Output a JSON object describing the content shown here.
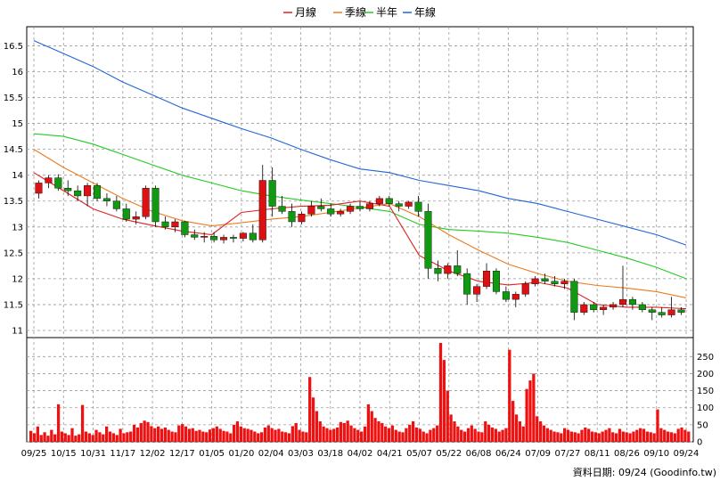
{
  "chart_data": {
    "type": "candlestick",
    "legend": [
      {
        "name": "月線",
        "color": "#e02020"
      },
      {
        "name": "季線",
        "color": "#ee7a1c"
      },
      {
        "name": "半年",
        "color": "#22cc22"
      },
      {
        "name": "年線",
        "color": "#1f66d6"
      }
    ],
    "price_axis": {
      "ylim": [
        11,
        16.8
      ],
      "ticks": [
        "16.5",
        "16",
        "15.5",
        "15",
        "14.5",
        "14",
        "13.5",
        "13",
        "12.5",
        "12",
        "11.5",
        "11"
      ]
    },
    "volume_axis": {
      "ylim": [
        0,
        290
      ],
      "ticks": [
        "250",
        "200",
        "150",
        "100",
        "50",
        "0"
      ]
    },
    "x_ticks": [
      "09/25",
      "10/15",
      "10/31",
      "11/17",
      "12/02",
      "12/17",
      "01/05",
      "01/20",
      "02/04",
      "03/03",
      "03/18",
      "04/02",
      "04/21",
      "05/07",
      "05/22",
      "06/08",
      "06/24",
      "07/09",
      "07/27",
      "08/11",
      "08/26",
      "09/10",
      "09/24"
    ],
    "grid": true,
    "series": [
      {
        "name": "年線",
        "x": [
          "09/25",
          "10/15",
          "10/31",
          "11/17",
          "12/02",
          "12/17",
          "01/05",
          "01/20",
          "02/04",
          "03/03",
          "03/18",
          "04/02",
          "04/21",
          "05/07",
          "05/22",
          "06/08",
          "06/24",
          "07/09",
          "07/27",
          "08/11",
          "08/26",
          "09/10",
          "09/24"
        ],
        "values": [
          16.6,
          16.35,
          16.1,
          15.8,
          15.55,
          15.3,
          15.1,
          14.9,
          14.72,
          14.5,
          14.3,
          14.12,
          14.05,
          13.9,
          13.8,
          13.7,
          13.55,
          13.45,
          13.3,
          13.15,
          13.0,
          12.85,
          12.65
        ]
      },
      {
        "name": "半年",
        "x": [
          "09/25",
          "10/15",
          "10/31",
          "11/17",
          "12/02",
          "12/17",
          "01/05",
          "01/20",
          "02/04",
          "03/03",
          "03/18",
          "04/02",
          "04/21",
          "05/07",
          "05/22",
          "06/08",
          "06/24",
          "07/09",
          "07/27",
          "08/11",
          "08/26",
          "09/10",
          "09/24"
        ],
        "values": [
          14.8,
          14.75,
          14.6,
          14.4,
          14.2,
          14.0,
          13.85,
          13.7,
          13.6,
          13.52,
          13.45,
          13.38,
          13.3,
          13.05,
          12.95,
          12.92,
          12.88,
          12.8,
          12.7,
          12.55,
          12.4,
          12.22,
          12.0
        ]
      },
      {
        "name": "季線",
        "x": [
          "09/25",
          "10/15",
          "10/31",
          "11/17",
          "12/02",
          "12/17",
          "01/05",
          "01/20",
          "02/04",
          "03/03",
          "03/18",
          "04/02",
          "04/21",
          "05/07",
          "05/22",
          "06/08",
          "06/24",
          "07/09",
          "07/27",
          "08/11",
          "08/26",
          "09/10",
          "09/24"
        ],
        "values": [
          14.5,
          14.15,
          13.85,
          13.55,
          13.3,
          13.12,
          13.02,
          13.08,
          13.15,
          13.2,
          13.28,
          13.37,
          13.45,
          13.2,
          12.85,
          12.55,
          12.28,
          12.1,
          11.95,
          11.87,
          11.82,
          11.75,
          11.63
        ]
      },
      {
        "name": "月線",
        "x": [
          "09/25",
          "10/15",
          "10/31",
          "11/17",
          "12/02",
          "12/17",
          "01/05",
          "01/20",
          "02/04",
          "03/03",
          "03/18",
          "04/02",
          "04/21",
          "05/07",
          "05/22",
          "06/08",
          "06/24",
          "07/09",
          "07/27",
          "08/11",
          "08/26",
          "09/10",
          "09/24"
        ],
        "values": [
          14.05,
          13.7,
          13.35,
          13.15,
          13.03,
          12.92,
          12.85,
          13.28,
          13.35,
          13.4,
          13.42,
          13.5,
          13.4,
          12.45,
          12.15,
          11.95,
          11.88,
          11.93,
          11.82,
          11.5,
          11.45,
          11.45,
          11.42
        ]
      }
    ],
    "candles": [
      [
        13.65,
        13.9,
        13.55,
        13.85
      ],
      [
        13.85,
        14.0,
        13.75,
        13.95
      ],
      [
        13.95,
        14.02,
        13.7,
        13.75
      ],
      [
        13.75,
        13.9,
        13.6,
        13.7
      ],
      [
        13.7,
        13.8,
        13.5,
        13.6
      ],
      [
        13.6,
        13.85,
        13.4,
        13.8
      ],
      [
        13.8,
        13.85,
        13.5,
        13.55
      ],
      [
        13.55,
        13.65,
        13.4,
        13.5
      ],
      [
        13.5,
        13.6,
        13.3,
        13.35
      ],
      [
        13.35,
        13.45,
        13.1,
        13.15
      ],
      [
        13.15,
        13.3,
        13.05,
        13.2
      ],
      [
        13.2,
        13.8,
        13.15,
        13.75
      ],
      [
        13.75,
        13.8,
        13.0,
        13.1
      ],
      [
        13.1,
        13.2,
        12.95,
        13.0
      ],
      [
        13.0,
        13.15,
        12.9,
        13.1
      ],
      [
        13.1,
        13.12,
        12.8,
        12.85
      ],
      [
        12.85,
        12.95,
        12.75,
        12.8
      ],
      [
        12.8,
        12.9,
        12.7,
        12.82
      ],
      [
        12.82,
        12.9,
        12.7,
        12.75
      ],
      [
        12.75,
        12.85,
        12.68,
        12.8
      ],
      [
        12.8,
        12.85,
        12.7,
        12.78
      ],
      [
        12.78,
        12.9,
        12.72,
        12.88
      ],
      [
        12.88,
        13.05,
        12.7,
        12.75
      ],
      [
        12.75,
        14.2,
        12.7,
        13.9
      ],
      [
        13.9,
        14.15,
        13.2,
        13.4
      ],
      [
        13.4,
        13.6,
        13.25,
        13.3
      ],
      [
        13.3,
        13.45,
        13.0,
        13.1
      ],
      [
        13.1,
        13.3,
        13.05,
        13.25
      ],
      [
        13.25,
        13.5,
        13.2,
        13.4
      ],
      [
        13.4,
        13.55,
        13.3,
        13.35
      ],
      [
        13.35,
        13.45,
        13.2,
        13.25
      ],
      [
        13.25,
        13.35,
        13.2,
        13.3
      ],
      [
        13.3,
        13.45,
        13.25,
        13.4
      ],
      [
        13.4,
        13.5,
        13.3,
        13.35
      ],
      [
        13.35,
        13.5,
        13.3,
        13.45
      ],
      [
        13.45,
        13.6,
        13.4,
        13.55
      ],
      [
        13.55,
        13.6,
        13.4,
        13.45
      ],
      [
        13.45,
        13.5,
        13.3,
        13.4
      ],
      [
        13.4,
        13.5,
        13.35,
        13.48
      ],
      [
        13.48,
        13.6,
        13.2,
        13.3
      ],
      [
        13.3,
        13.45,
        12.0,
        12.2
      ],
      [
        12.2,
        12.35,
        11.95,
        12.1
      ],
      [
        12.1,
        12.3,
        12.0,
        12.25
      ],
      [
        12.25,
        12.55,
        12.05,
        12.1
      ],
      [
        12.1,
        12.2,
        11.5,
        11.7
      ],
      [
        11.7,
        11.9,
        11.55,
        11.85
      ],
      [
        11.85,
        12.3,
        11.8,
        12.15
      ],
      [
        12.15,
        12.2,
        11.7,
        11.75
      ],
      [
        11.75,
        11.85,
        11.55,
        11.6
      ],
      [
        11.6,
        11.75,
        11.45,
        11.7
      ],
      [
        11.7,
        11.95,
        11.65,
        11.9
      ],
      [
        11.9,
        12.05,
        11.85,
        12.0
      ],
      [
        12.0,
        12.1,
        11.9,
        11.95
      ],
      [
        11.95,
        12.05,
        11.85,
        11.9
      ],
      [
        11.9,
        12.0,
        11.8,
        11.95
      ],
      [
        11.95,
        12.0,
        11.2,
        11.35
      ],
      [
        11.35,
        11.55,
        11.3,
        11.5
      ],
      [
        11.5,
        11.55,
        11.35,
        11.4
      ],
      [
        11.4,
        11.5,
        11.3,
        11.45
      ],
      [
        11.45,
        11.55,
        11.4,
        11.5
      ],
      [
        11.5,
        12.25,
        11.45,
        11.6
      ],
      [
        11.6,
        11.65,
        11.4,
        11.5
      ],
      [
        11.5,
        11.55,
        11.35,
        11.4
      ],
      [
        11.4,
        11.45,
        11.2,
        11.35
      ],
      [
        11.35,
        11.45,
        11.25,
        11.3
      ],
      [
        11.3,
        11.65,
        11.25,
        11.4
      ],
      [
        11.4,
        11.45,
        11.3,
        11.35
      ]
    ],
    "volumes": [
      32,
      25,
      45,
      20,
      28,
      18,
      35,
      22,
      110,
      30,
      25,
      20,
      40,
      18,
      22,
      108,
      30,
      25,
      20,
      35,
      28,
      22,
      45,
      30,
      25,
      20,
      38,
      25,
      28,
      30,
      50,
      42,
      55,
      62,
      58,
      46,
      40,
      45,
      38,
      42,
      35,
      30,
      28,
      48,
      52,
      45,
      38,
      40,
      32,
      35,
      30,
      28,
      36,
      40,
      45,
      38,
      32,
      30,
      25,
      50,
      60,
      45,
      40,
      38,
      35,
      30,
      25,
      28,
      42,
      48,
      40,
      35,
      38,
      30,
      28,
      25,
      46,
      55,
      35,
      30,
      28,
      190,
      130,
      90,
      60,
      45,
      40,
      35,
      38,
      42,
      58,
      55,
      62,
      48,
      40,
      35,
      30,
      45,
      110,
      90,
      70,
      60,
      55,
      45,
      40,
      48,
      35,
      30,
      28,
      40,
      50,
      60,
      42,
      38,
      30,
      25,
      35,
      40,
      48,
      290,
      240,
      150,
      80,
      60,
      45,
      35,
      30,
      40,
      48,
      38,
      30,
      28,
      60,
      50,
      42,
      38,
      30,
      35,
      40,
      270,
      120,
      80,
      60,
      45,
      155,
      180,
      200,
      75,
      60,
      48,
      40,
      35,
      30,
      28,
      25,
      40,
      35,
      30,
      28,
      25,
      35,
      42,
      38,
      30,
      28,
      25,
      30,
      35,
      40,
      28,
      25,
      38,
      30,
      28,
      25,
      30,
      35,
      40,
      38,
      30,
      28,
      25,
      95,
      40,
      35,
      30,
      28,
      25,
      38,
      42,
      35,
      30
    ],
    "footer": "資料日期: 09/24  (Goodinfo.tw)"
  }
}
